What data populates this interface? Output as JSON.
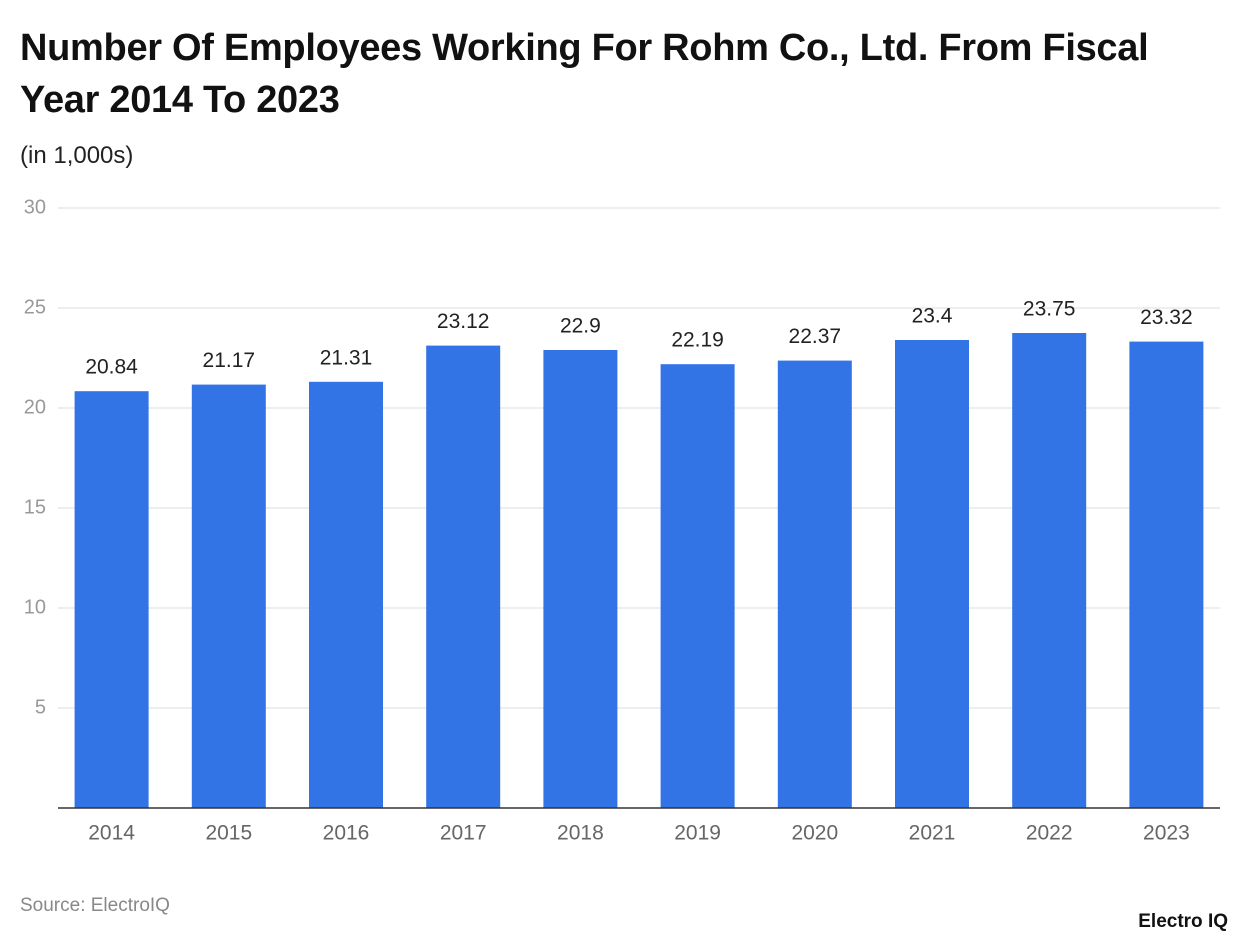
{
  "chart_data": {
    "type": "bar",
    "title": "Number Of Employees Working For Rohm Co., Ltd. From Fiscal Year 2014 To 2023",
    "subtitle": "(in 1,000s)",
    "categories": [
      "2014",
      "2015",
      "2016",
      "2017",
      "2018",
      "2019",
      "2020",
      "2021",
      "2022",
      "2023"
    ],
    "values": [
      20.84,
      21.17,
      21.31,
      23.12,
      22.9,
      22.19,
      22.37,
      23.4,
      23.75,
      23.32
    ],
    "color": "#3273e6",
    "ylim": [
      0,
      30
    ],
    "yticks": [
      5,
      10,
      15,
      20,
      25,
      30
    ],
    "grid": true,
    "source": "Source: ElectroIQ",
    "brand": "Electro IQ"
  }
}
